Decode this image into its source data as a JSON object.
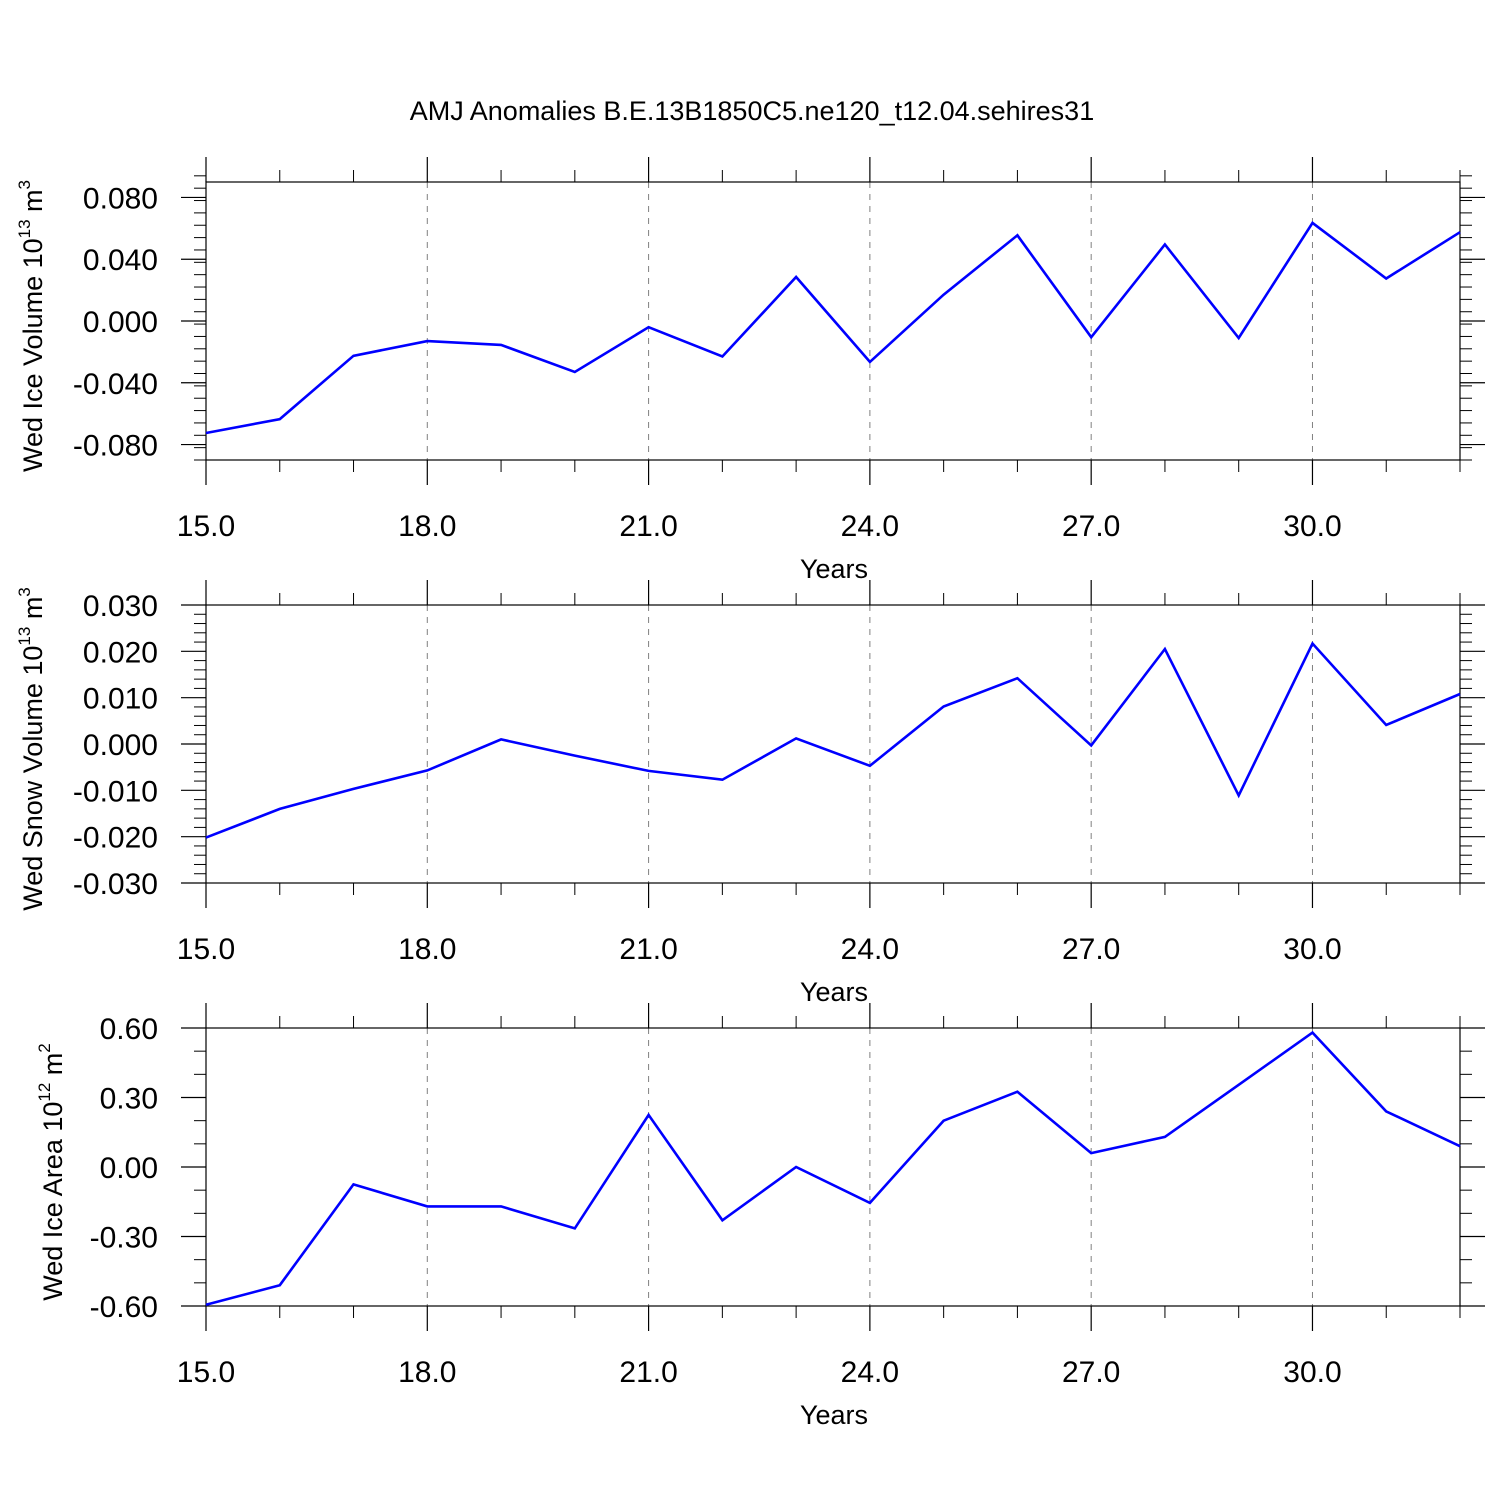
{
  "figure": {
    "title": "AMJ Anomalies B.E.13B1850C5.ne120_t12.04.sehires31"
  },
  "chart_data": [
    {
      "type": "line",
      "xlabel": "Years",
      "ylabel": {
        "text": "Wed Ice Volume 10",
        "exp": "13",
        "unit": " m",
        "unit_exp": "3"
      },
      "xlim": [
        15,
        32
      ],
      "ylim": [
        -0.09,
        0.09
      ],
      "xticks": [
        15,
        18,
        21,
        24,
        27,
        30
      ],
      "xtick_labels": [
        "15.0",
        "18.0",
        "21.0",
        "24.0",
        "27.0",
        "30.0"
      ],
      "yticks": [
        0.08,
        0.04,
        0.0,
        -0.04,
        -0.08
      ],
      "ytick_labels": [
        "0.080",
        "0.040",
        "0.000",
        "-0.040",
        "-0.080"
      ],
      "x_minor_step": 1,
      "y_minor_step": 0.008,
      "grid": "x-dashed",
      "color": "#0000ff",
      "series": [
        {
          "x": [
            15,
            16,
            17,
            18,
            19,
            20,
            21,
            22,
            23,
            24,
            25,
            26,
            27,
            28,
            29,
            30,
            31,
            32
          ],
          "values": [
            -0.0725,
            -0.0635,
            -0.0225,
            -0.013,
            -0.0155,
            -0.033,
            -0.004,
            -0.023,
            0.0285,
            -0.0265,
            0.017,
            0.0555,
            -0.0105,
            0.0495,
            -0.011,
            0.0635,
            0.0275,
            0.0575
          ]
        }
      ]
    },
    {
      "type": "line",
      "xlabel": "Years",
      "ylabel": {
        "text": "Wed Snow Volume 10",
        "exp": "13",
        "unit": " m",
        "unit_exp": "3"
      },
      "xlim": [
        15,
        32
      ],
      "ylim": [
        -0.03,
        0.03
      ],
      "xticks": [
        15,
        18,
        21,
        24,
        27,
        30
      ],
      "xtick_labels": [
        "15.0",
        "18.0",
        "21.0",
        "24.0",
        "27.0",
        "30.0"
      ],
      "yticks": [
        0.03,
        0.02,
        0.01,
        0.0,
        -0.01,
        -0.02,
        -0.03
      ],
      "ytick_labels": [
        "0.030",
        "0.020",
        "0.010",
        "0.000",
        "-0.010",
        "-0.020",
        "-0.030"
      ],
      "x_minor_step": 1,
      "y_minor_step": 0.002,
      "grid": "x-dashed",
      "color": "#0000ff",
      "series": [
        {
          "x": [
            15,
            16,
            17,
            18,
            19,
            20,
            21,
            22,
            23,
            24,
            25,
            26,
            27,
            28,
            29,
            30,
            31,
            32
          ],
          "values": [
            -0.0202,
            -0.014,
            -0.0097,
            -0.0057,
            0.001,
            -0.0025,
            -0.0058,
            -0.0077,
            0.0012,
            -0.0047,
            0.0081,
            0.0142,
            -0.0003,
            0.0205,
            -0.0111,
            0.0217,
            0.0041,
            0.0108
          ]
        }
      ]
    },
    {
      "type": "line",
      "xlabel": "Years",
      "ylabel": {
        "text": "Wed Ice Area 10",
        "exp": "12",
        "unit": " m",
        "unit_exp": "2"
      },
      "xlim": [
        15,
        32
      ],
      "ylim": [
        -0.6,
        0.6
      ],
      "xticks": [
        15,
        18,
        21,
        24,
        27,
        30
      ],
      "xtick_labels": [
        "15.0",
        "18.0",
        "21.0",
        "24.0",
        "27.0",
        "30.0"
      ],
      "yticks": [
        0.6,
        0.3,
        0.0,
        -0.3,
        -0.6
      ],
      "ytick_labels": [
        "0.60",
        "0.30",
        "0.00",
        "-0.30",
        "-0.60"
      ],
      "x_minor_step": 1,
      "y_minor_step": 0.1,
      "grid": "x-dashed",
      "color": "#0000ff",
      "series": [
        {
          "x": [
            15,
            16,
            17,
            18,
            19,
            20,
            21,
            22,
            23,
            24,
            25,
            26,
            27,
            28,
            29,
            30,
            31,
            32
          ],
          "values": [
            -0.595,
            -0.51,
            -0.075,
            -0.17,
            -0.17,
            -0.265,
            0.225,
            -0.23,
            0.0,
            -0.155,
            0.2,
            0.325,
            0.06,
            0.13,
            0.355,
            0.58,
            0.24,
            0.09
          ]
        }
      ]
    }
  ]
}
